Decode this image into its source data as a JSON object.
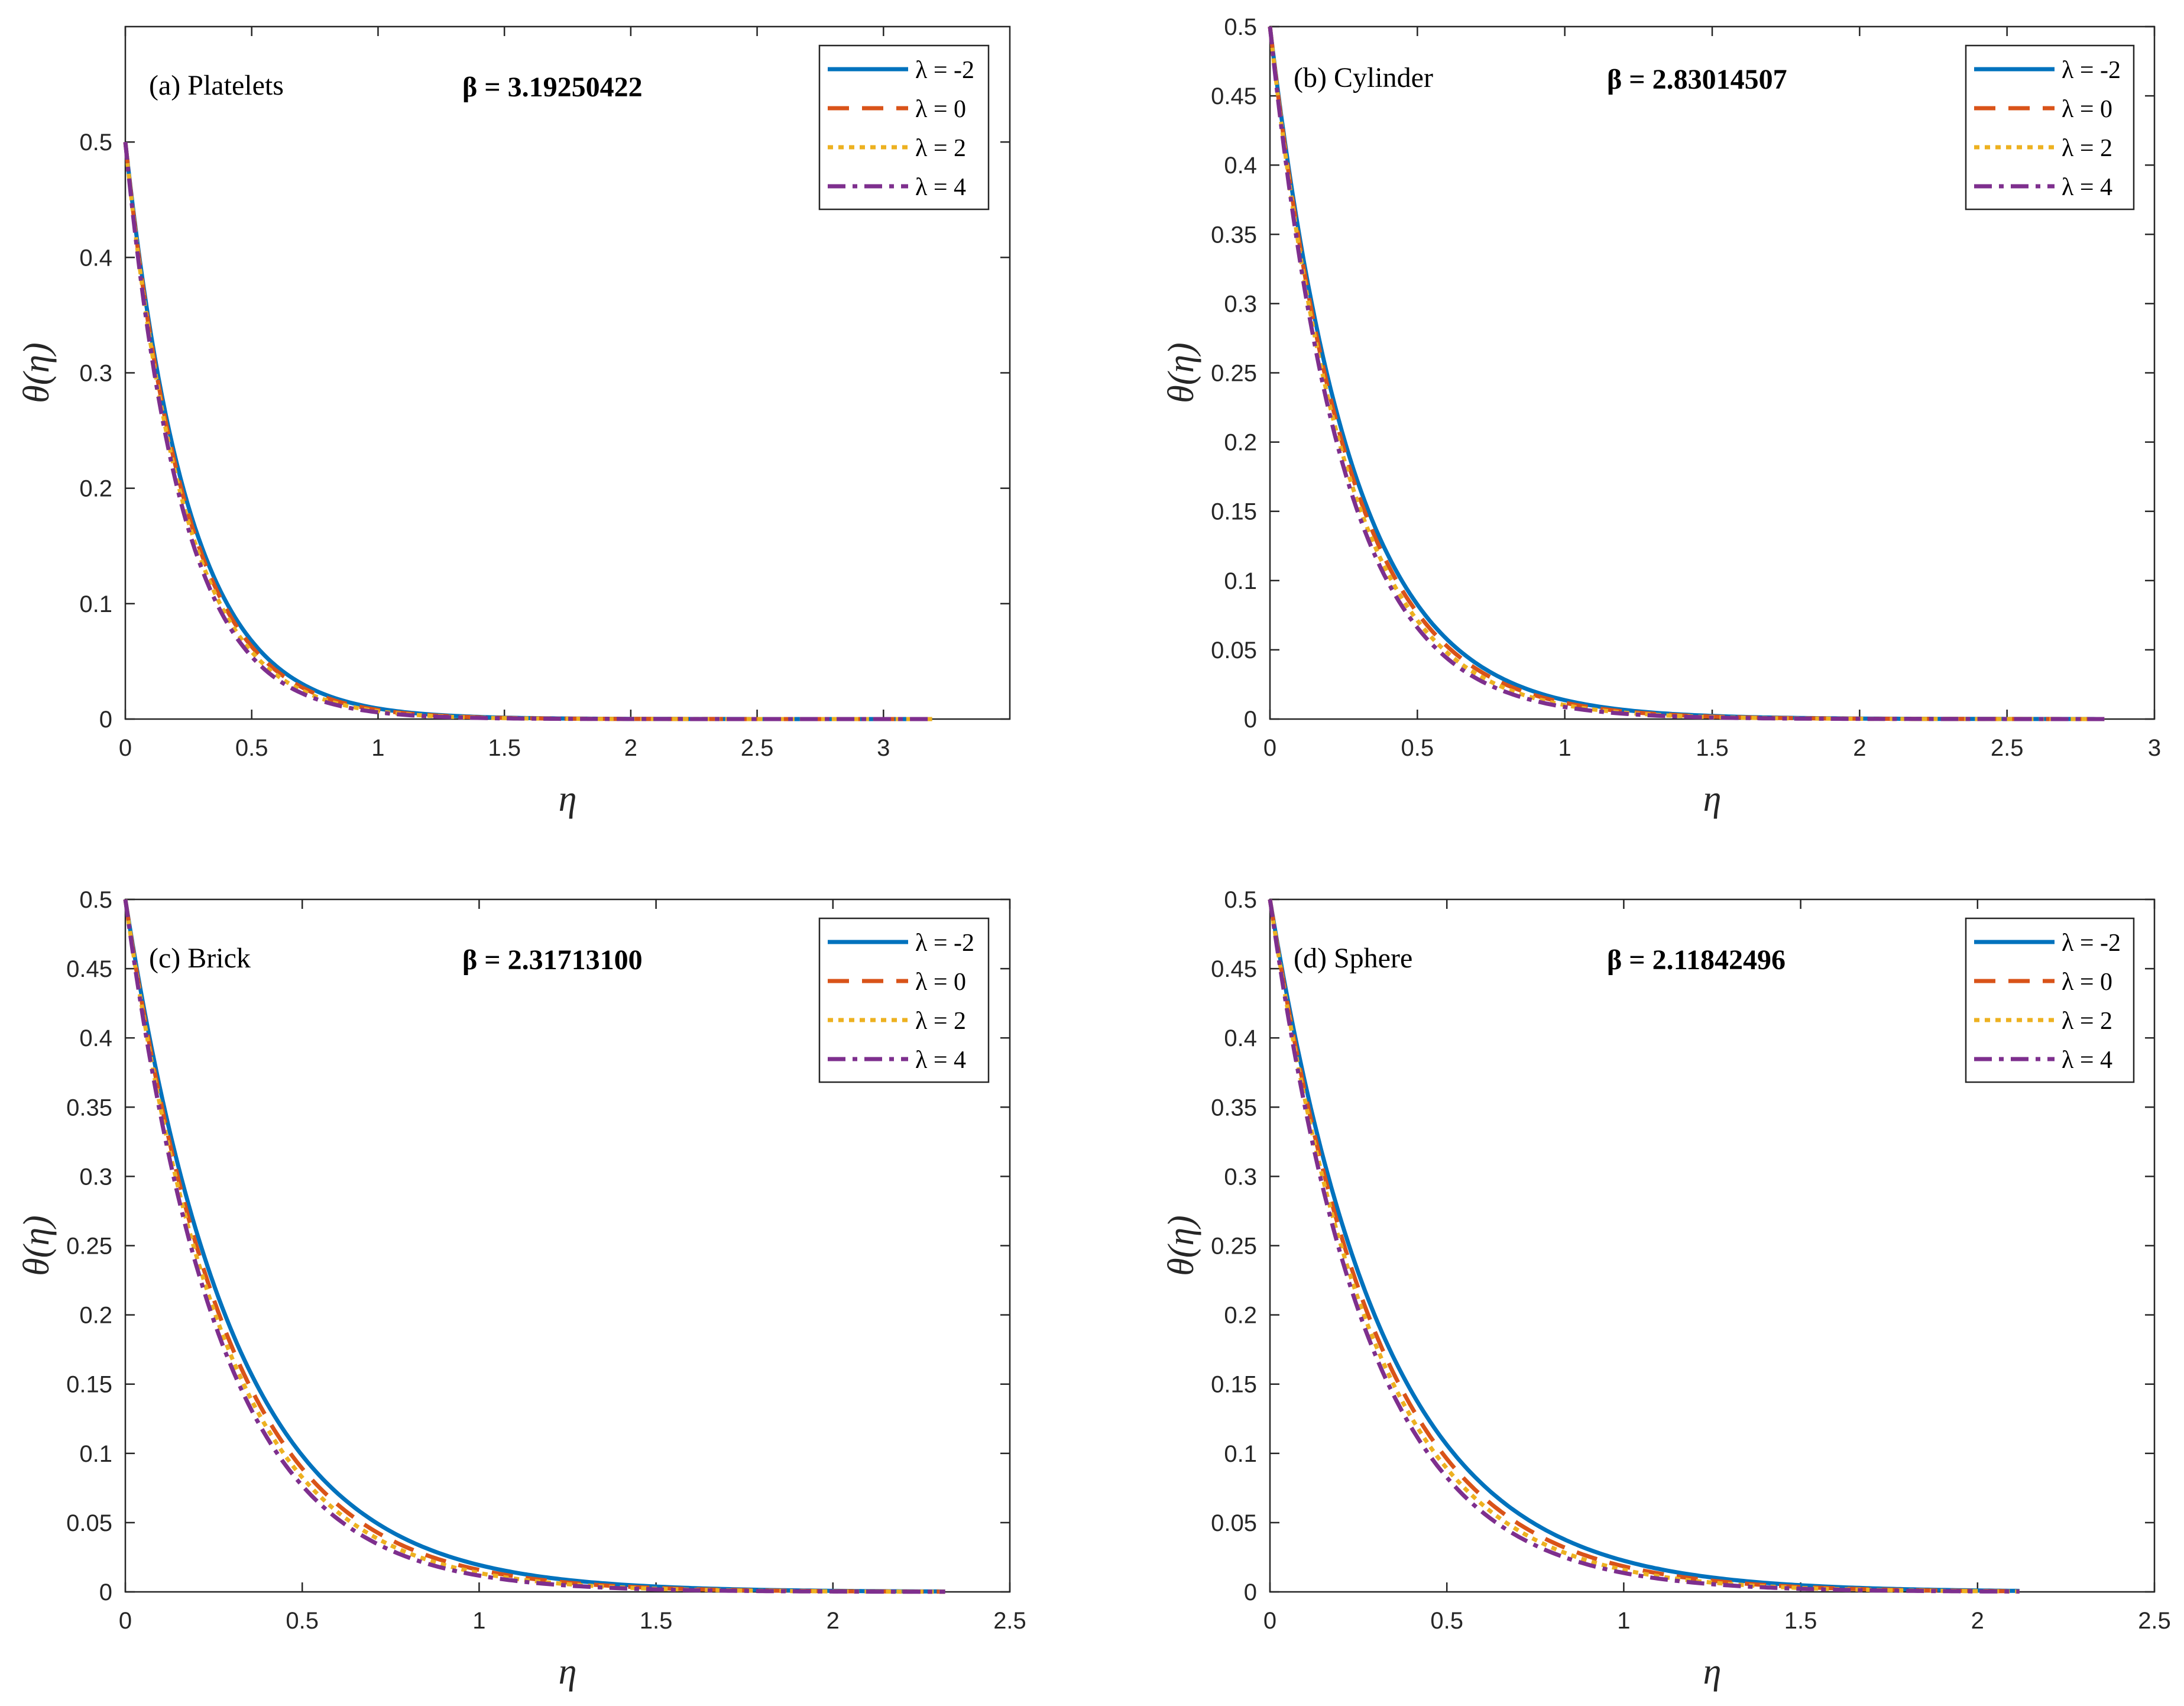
{
  "figure": {
    "x_symbol": "η",
    "y_symbol": "θ(η)"
  },
  "legend_entries": [
    {
      "label": "λ = -2",
      "color": "#0072BD",
      "dash": "solid"
    },
    {
      "label": "λ = 0",
      "color": "#D95319",
      "dash": "dashed"
    },
    {
      "label": "λ = 2",
      "color": "#EDB120",
      "dash": "dotted"
    },
    {
      "label": "λ = 4",
      "color": "#7E2F8E",
      "dash": "dashdot"
    }
  ],
  "chart_data": [
    {
      "type": "line",
      "panel_label": "(a) Platelets",
      "beta_label": "β = 3.19250422",
      "xlabel": "η",
      "ylabel": "θ(η)",
      "xlim": [
        0,
        3.5
      ],
      "ylim": [
        0,
        0.6
      ],
      "xticks": [
        0,
        0.5,
        1,
        1.5,
        2,
        2.5,
        3
      ],
      "xtick_labels": [
        "0",
        "0.5",
        "1",
        "1.5",
        "2",
        "2.5",
        "3"
      ],
      "yticks": [
        0,
        0.1,
        0.2,
        0.3,
        0.4,
        0.5
      ],
      "ytick_labels": [
        "0",
        "0.1",
        "0.2",
        "0.3",
        "0.4",
        "0.5"
      ],
      "x_max": 3.19250422,
      "series": [
        {
          "name": "λ = -2",
          "theta0": 0.5,
          "decay": 4.0
        },
        {
          "name": "λ = 0",
          "theta0": 0.5,
          "decay": 4.15
        },
        {
          "name": "λ = 2",
          "theta0": 0.5,
          "decay": 4.3
        },
        {
          "name": "λ = 4",
          "theta0": 0.5,
          "decay": 4.45
        }
      ]
    },
    {
      "type": "line",
      "panel_label": "(b) Cylinder",
      "beta_label": "β = 2.83014507",
      "xlabel": "η",
      "ylabel": "θ(η)",
      "xlim": [
        0,
        3
      ],
      "ylim": [
        0,
        0.5
      ],
      "xticks": [
        0,
        0.5,
        1,
        1.5,
        2,
        2.5,
        3
      ],
      "xtick_labels": [
        "0",
        "0.5",
        "1",
        "1.5",
        "2",
        "2.5",
        "3"
      ],
      "yticks": [
        0,
        0.05,
        0.1,
        0.15,
        0.2,
        0.25,
        0.3,
        0.35,
        0.4,
        0.45,
        0.5
      ],
      "ytick_labels": [
        "0",
        "0.05",
        "0.1",
        "0.15",
        "0.2",
        "0.25",
        "0.3",
        "0.35",
        "0.4",
        "0.45",
        "0.5"
      ],
      "x_max": 2.83014507,
      "series": [
        {
          "name": "λ = -2",
          "theta0": 0.5,
          "decay": 3.6
        },
        {
          "name": "λ = 0",
          "theta0": 0.5,
          "decay": 3.75
        },
        {
          "name": "λ = 2",
          "theta0": 0.5,
          "decay": 3.9
        },
        {
          "name": "λ = 4",
          "theta0": 0.5,
          "decay": 4.05
        }
      ]
    },
    {
      "type": "line",
      "panel_label": "(c) Brick",
      "beta_label": "β = 2.31713100",
      "xlabel": "η",
      "ylabel": "θ(η)",
      "xlim": [
        0,
        2.5
      ],
      "ylim": [
        0,
        0.5
      ],
      "xticks": [
        0,
        0.5,
        1,
        1.5,
        2,
        2.5
      ],
      "xtick_labels": [
        "0",
        "0.5",
        "1",
        "1.5",
        "2",
        "2.5"
      ],
      "yticks": [
        0,
        0.05,
        0.1,
        0.15,
        0.2,
        0.25,
        0.3,
        0.35,
        0.4,
        0.45,
        0.5
      ],
      "ytick_labels": [
        "0",
        "0.05",
        "0.1",
        "0.15",
        "0.2",
        "0.25",
        "0.3",
        "0.35",
        "0.4",
        "0.45",
        "0.5"
      ],
      "x_max": 2.317131,
      "series": [
        {
          "name": "λ = -2",
          "theta0": 0.5,
          "decay": 3.25
        },
        {
          "name": "λ = 0",
          "theta0": 0.5,
          "decay": 3.45
        },
        {
          "name": "λ = 2",
          "theta0": 0.5,
          "decay": 3.6
        },
        {
          "name": "λ = 4",
          "theta0": 0.5,
          "decay": 3.75
        }
      ]
    },
    {
      "type": "line",
      "panel_label": "(d) Sphere",
      "beta_label": "β = 2.11842496",
      "xlabel": "η",
      "ylabel": "θ(η)",
      "xlim": [
        0,
        2.5
      ],
      "ylim": [
        0,
        0.5
      ],
      "xticks": [
        0,
        0.5,
        1,
        1.5,
        2,
        2.5
      ],
      "xtick_labels": [
        "0",
        "0.5",
        "1",
        "1.5",
        "2",
        "2.5"
      ],
      "yticks": [
        0,
        0.05,
        0.1,
        0.15,
        0.2,
        0.25,
        0.3,
        0.35,
        0.4,
        0.45,
        0.5
      ],
      "ytick_labels": [
        "0",
        "0.05",
        "0.1",
        "0.15",
        "0.2",
        "0.25",
        "0.3",
        "0.35",
        "0.4",
        "0.45",
        "0.5"
      ],
      "x_max": 2.11842496,
      "series": [
        {
          "name": "λ = -2",
          "theta0": 0.5,
          "decay": 3.1
        },
        {
          "name": "λ = 0",
          "theta0": 0.5,
          "decay": 3.3
        },
        {
          "name": "λ = 2",
          "theta0": 0.5,
          "decay": 3.45
        },
        {
          "name": "λ = 4",
          "theta0": 0.5,
          "decay": 3.6
        }
      ]
    }
  ]
}
